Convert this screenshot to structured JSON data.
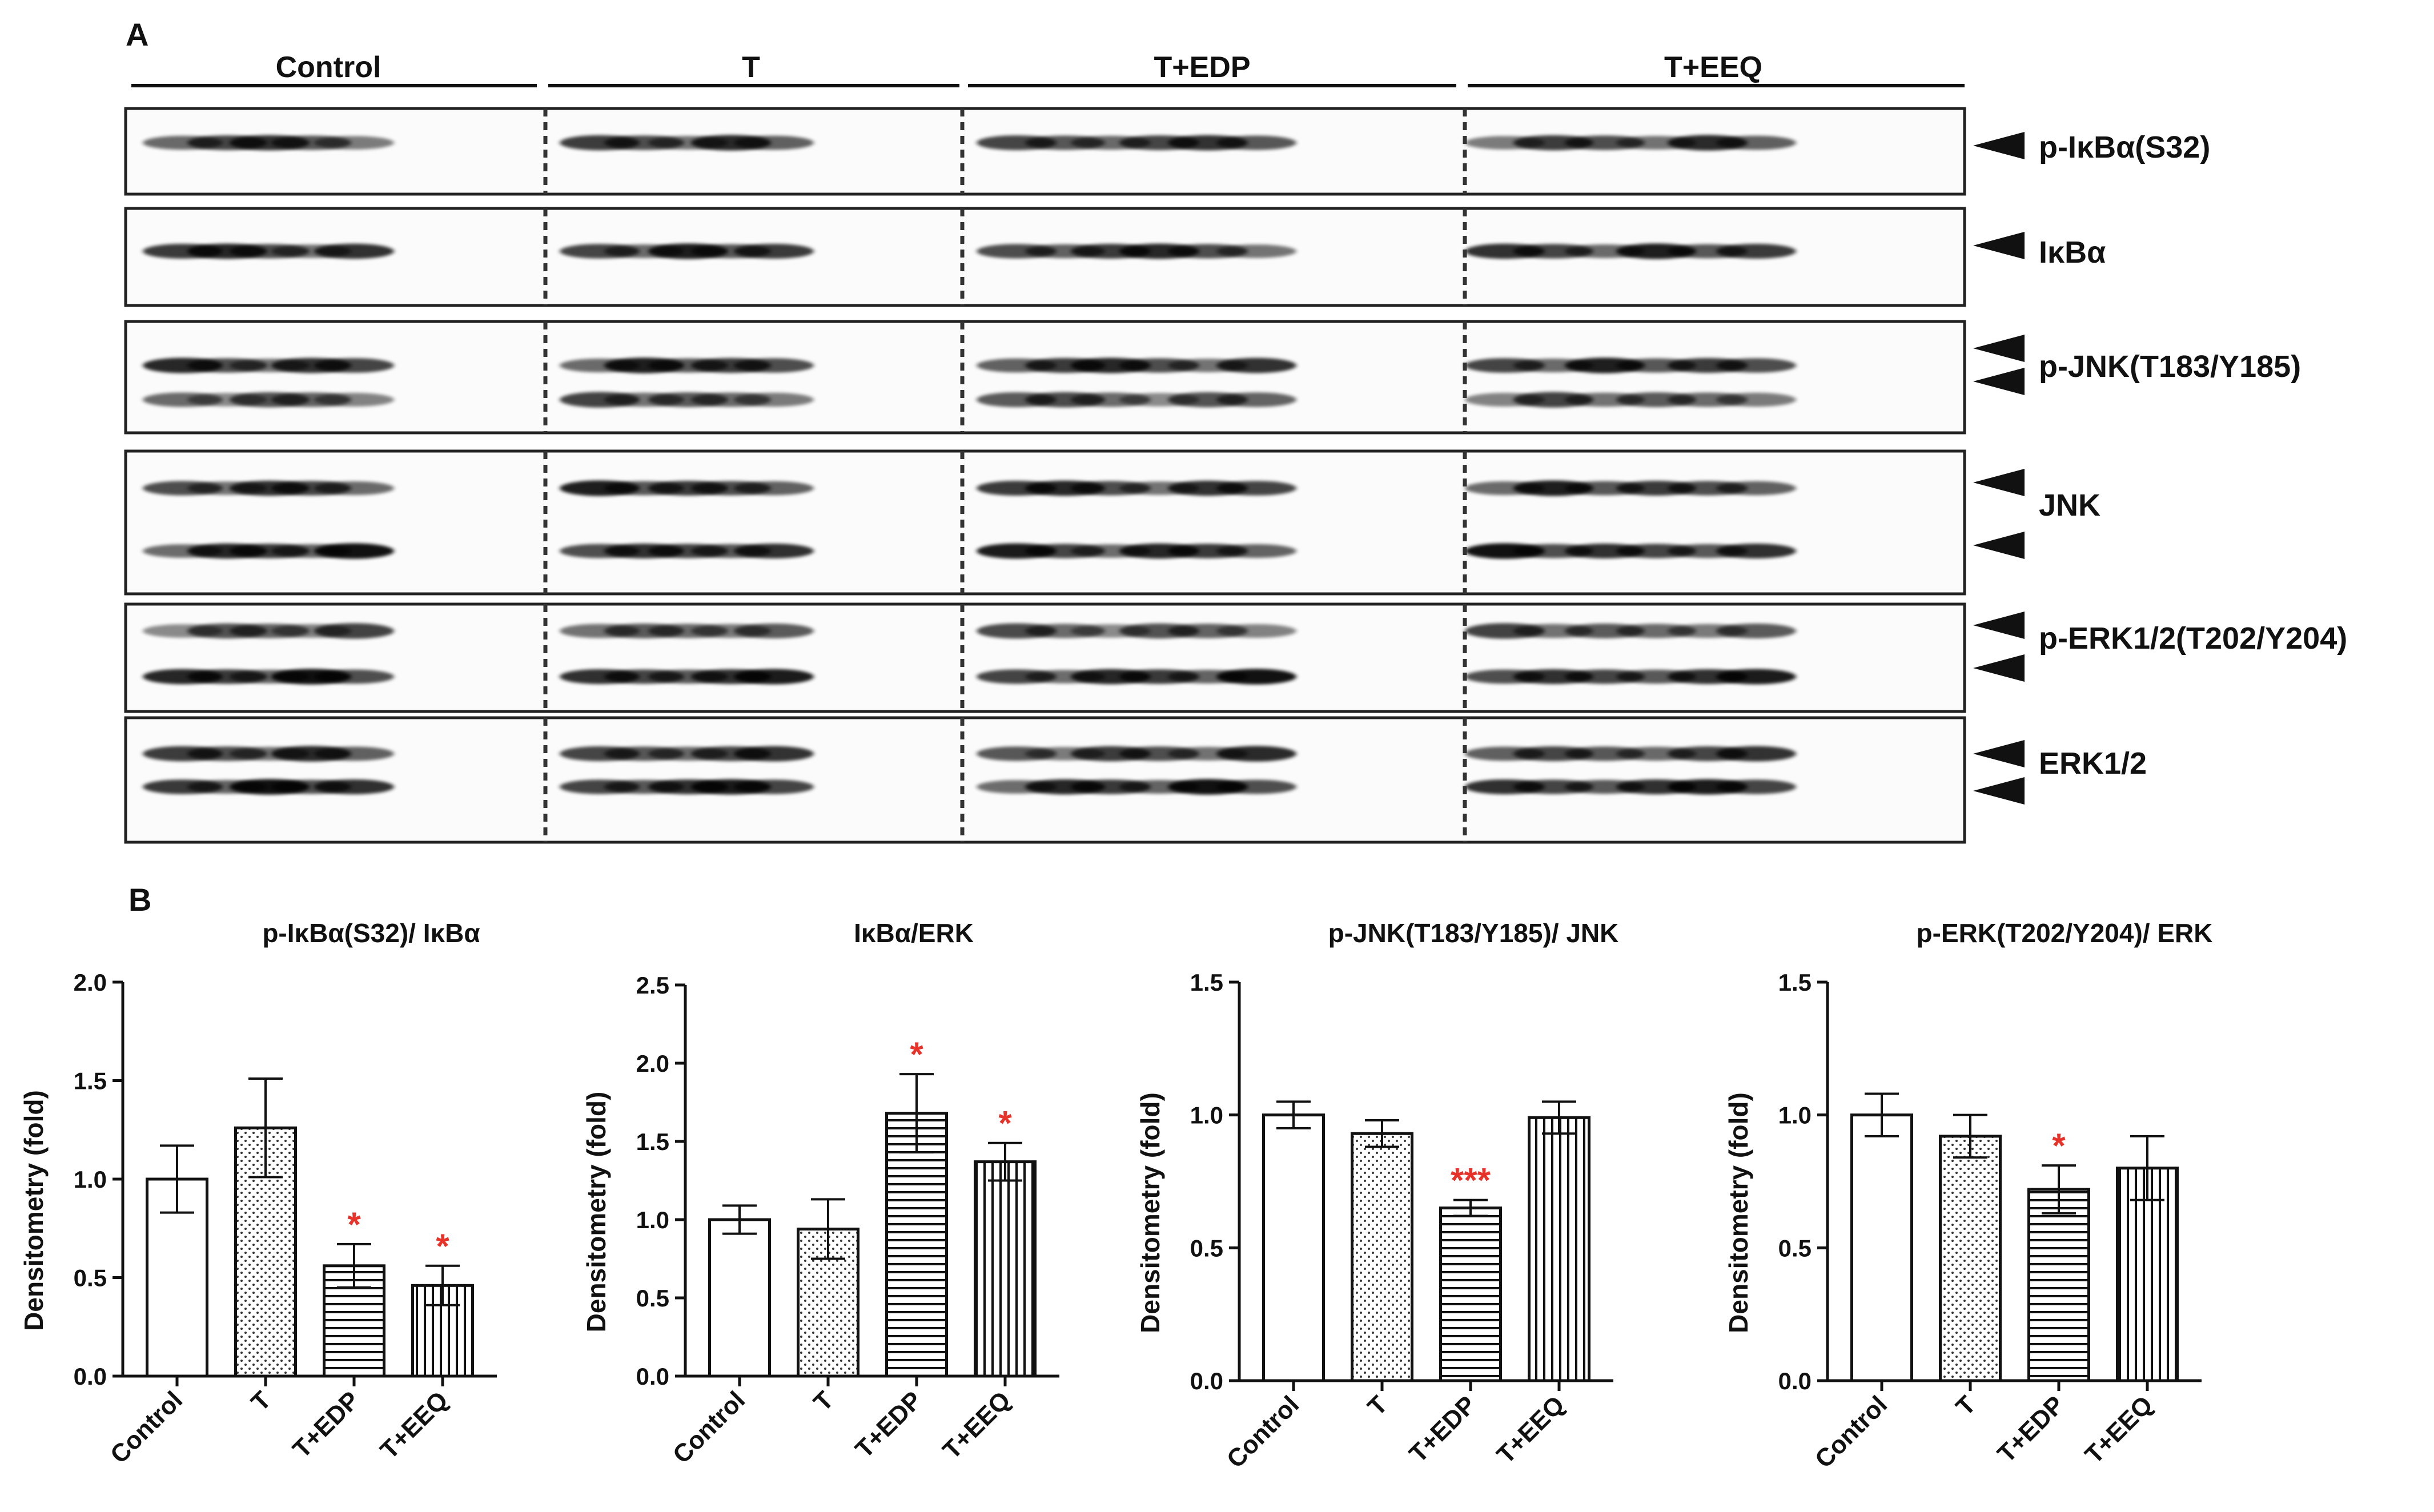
{
  "panel_a": {
    "letter": "A",
    "groups": [
      "Control",
      "T",
      "T+EDP",
      "T+EEQ"
    ],
    "blot_labels": [
      "p-IκBα(S32)",
      "IκBα",
      "p-JNK(T183/Y185)",
      "JNK",
      "p-ERK1/2(T202/Y204)",
      "ERK1/2"
    ],
    "lane_counts": [
      5,
      5,
      6,
      6
    ]
  },
  "panel_b": {
    "letter": "B"
  },
  "colors": {
    "bar_outline": "#000000",
    "significance": "#e8332a",
    "background": "#ffffff"
  },
  "chart_data": [
    {
      "type": "bar",
      "title": "p-IκBα(S32)/ IκBα",
      "ylabel": "Densitometry (fold)",
      "categories": [
        "Control",
        "T",
        "T+EDP",
        "T+EEQ"
      ],
      "values": [
        1.0,
        1.26,
        0.56,
        0.46
      ],
      "errors": [
        0.17,
        0.25,
        0.11,
        0.1
      ],
      "significance": [
        "",
        "",
        "*",
        "*"
      ],
      "patterns": [
        "none",
        "dots",
        "horizontal",
        "vertical"
      ],
      "ylim": [
        0,
        2.0
      ],
      "yticks": [
        "0.0",
        "0.5",
        "1.0",
        "1.5",
        "2.0"
      ],
      "ytick_values": [
        0,
        0.5,
        1.0,
        1.5,
        2.0
      ]
    },
    {
      "type": "bar",
      "title": "IκBα/ERK",
      "ylabel": "Densitometry (fold)",
      "categories": [
        "Control",
        "T",
        "T+EDP",
        "T+EEQ"
      ],
      "values": [
        1.0,
        0.94,
        1.68,
        1.37
      ],
      "errors": [
        0.09,
        0.19,
        0.25,
        0.12
      ],
      "significance": [
        "",
        "",
        "*",
        "*"
      ],
      "patterns": [
        "none",
        "dots",
        "horizontal",
        "vertical"
      ],
      "ylim": [
        0,
        2.5
      ],
      "yticks": [
        "0.0",
        "0.5",
        "1.0",
        "1.5",
        "2.0",
        "2.5"
      ],
      "ytick_values": [
        0,
        0.5,
        1.0,
        1.5,
        2.0,
        2.5
      ]
    },
    {
      "type": "bar",
      "title": "p-JNK(T183/Y185)/ JNK",
      "ylabel": "Densitometry (fold)",
      "categories": [
        "Control",
        "T",
        "T+EDP",
        "T+EEQ"
      ],
      "values": [
        1.0,
        0.93,
        0.65,
        0.99
      ],
      "errors": [
        0.05,
        0.05,
        0.03,
        0.06
      ],
      "significance": [
        "",
        "",
        "***",
        ""
      ],
      "patterns": [
        "none",
        "dots",
        "horizontal",
        "vertical"
      ],
      "ylim": [
        0,
        1.5
      ],
      "yticks": [
        "0.0",
        "0.5",
        "1.0",
        "1.5"
      ],
      "ytick_values": [
        0,
        0.5,
        1.0,
        1.5
      ]
    },
    {
      "type": "bar",
      "title": "p-ERK(T202/Y204)/ ERK",
      "ylabel": "Densitometry (fold)",
      "categories": [
        "Control",
        "T",
        "T+EDP",
        "T+EEQ"
      ],
      "values": [
        1.0,
        0.92,
        0.72,
        0.8
      ],
      "errors": [
        0.08,
        0.08,
        0.09,
        0.12
      ],
      "significance": [
        "",
        "",
        "*",
        ""
      ],
      "patterns": [
        "none",
        "dots",
        "horizontal",
        "vertical"
      ],
      "ylim": [
        0,
        1.5
      ],
      "yticks": [
        "0.0",
        "0.5",
        "1.0",
        "1.5"
      ],
      "ytick_values": [
        0,
        0.5,
        1.0,
        1.5
      ]
    }
  ]
}
